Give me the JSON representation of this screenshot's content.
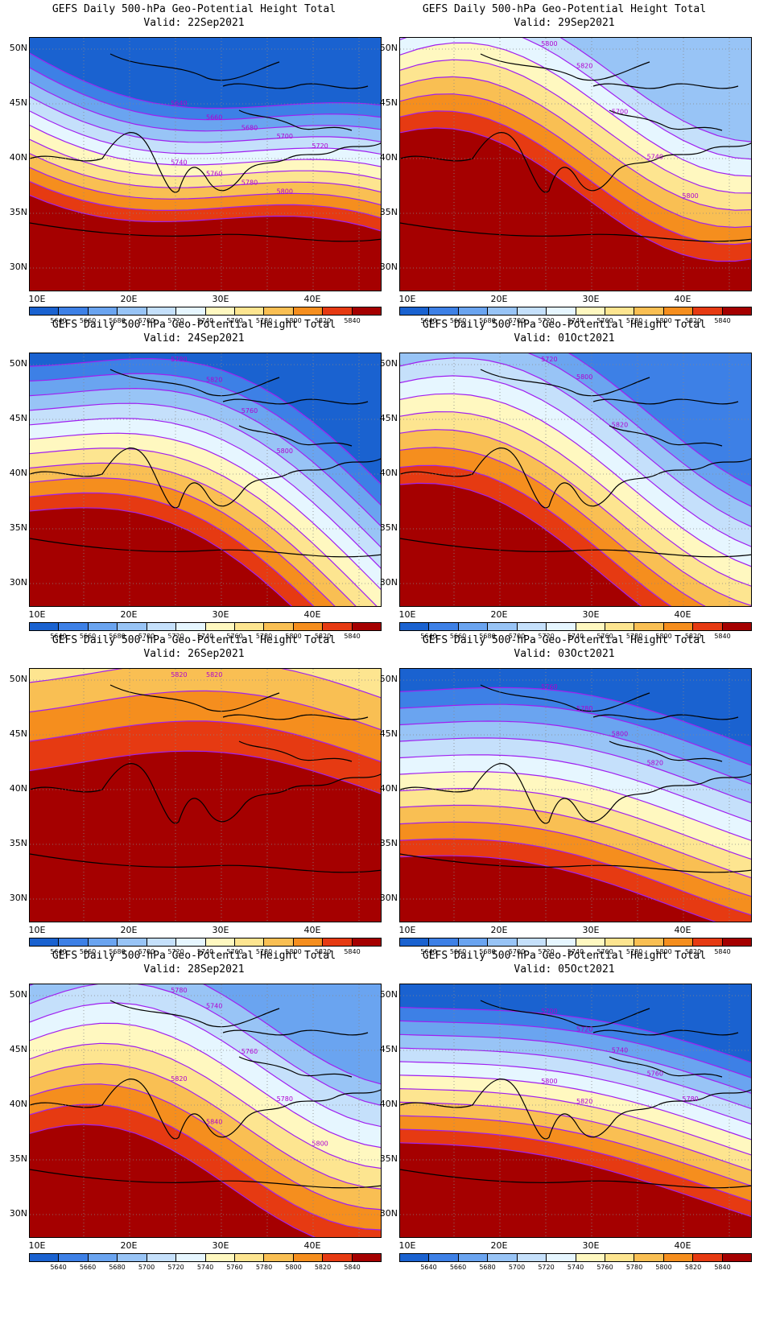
{
  "panel_title": "GEFS Daily 500-hPa Geo-Potential Height Total",
  "panels": [
    {
      "valid": "Valid: 22Sep2021",
      "contour_labels": [
        "5640",
        "5660",
        "5680",
        "5700",
        "5720",
        "5740",
        "5760",
        "5780",
        "5800"
      ]
    },
    {
      "valid": "Valid: 29Sep2021",
      "contour_labels": [
        "5800",
        "5820",
        "5700",
        "5740",
        "5800"
      ]
    },
    {
      "valid": "Valid: 24Sep2021",
      "contour_labels": [
        "5780",
        "5820",
        "5760",
        "5800"
      ]
    },
    {
      "valid": "Valid: 01Oct2021",
      "contour_labels": [
        "5720",
        "5800",
        "5820"
      ]
    },
    {
      "valid": "Valid: 26Sep2021",
      "contour_labels": [
        "5820",
        "5820"
      ]
    },
    {
      "valid": "Valid: 03Oct2021",
      "contour_labels": [
        "5760",
        "5780",
        "5800",
        "5820"
      ]
    },
    {
      "valid": "Valid: 28Sep2021",
      "contour_labels": [
        "5780",
        "5740",
        "5760",
        "5780",
        "5800",
        "5820",
        "5840"
      ]
    },
    {
      "valid": "Valid: 05Oct2021",
      "contour_labels": [
        "5700",
        "5720",
        "5740",
        "5760",
        "5780",
        "5800",
        "5820"
      ]
    }
  ],
  "lat_labels": [
    "50N",
    "45N",
    "40N",
    "35N",
    "30N"
  ],
  "lon_labels": [
    "10E",
    "20E",
    "30E",
    "40E"
  ],
  "colorbar": {
    "labels": [
      "5640",
      "5660",
      "5680",
      "5700",
      "5720",
      "5740",
      "5760",
      "5780",
      "5800",
      "5820",
      "5840"
    ],
    "colors": [
      "#1a62d0",
      "#3d80e6",
      "#6aa4f0",
      "#98c4f6",
      "#c5e0fb",
      "#e6f6ff",
      "#fff8c0",
      "#fde590",
      "#f9bf53",
      "#f58e1e",
      "#e63a12",
      "#a50000"
    ]
  }
}
